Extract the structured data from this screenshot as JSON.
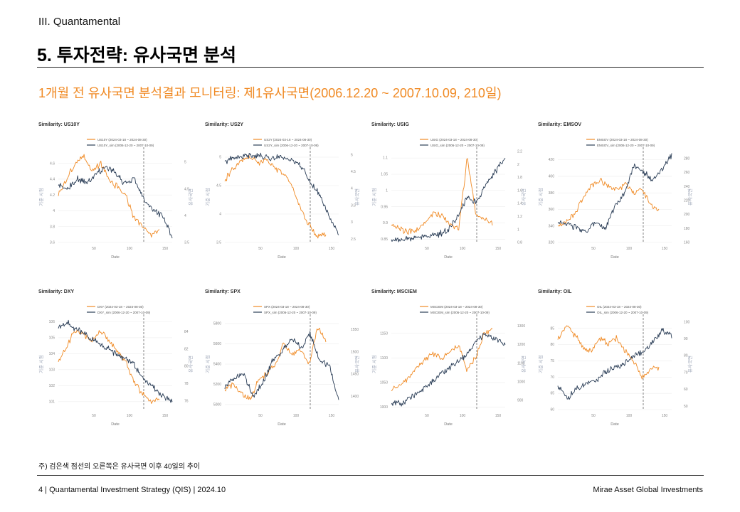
{
  "header": {
    "section": "III. Quantamental",
    "title": "5. 투자전략: 유사국면 분석",
    "subtitle": "1개월 전 유사국면 분석결과 모니터링: 제1유사국면(2006.12.20 ~ 2007.10.09, 210일)"
  },
  "colors": {
    "current": "#f08a24",
    "sim": "#2b3e57",
    "accent": "#f08a24",
    "axis_text": "#888888",
    "grid": "#eeeeee",
    "divider": "#777777"
  },
  "chart_data": [
    {
      "type": "line",
      "title": "Similarity: US10Y",
      "xlabel": "Date",
      "ylabel_left": "기준 시점",
      "ylabel_right": "유사국면",
      "xlim": [
        0,
        160
      ],
      "xticks": [
        50,
        100,
        150
      ],
      "ylim_left": [
        3.6,
        4.75
      ],
      "yticks_left": [
        3.6,
        3.8,
        4,
        4.2,
        4.4,
        4.6
      ],
      "ylim_right": [
        3.5,
        5.2
      ],
      "yticks_right": [
        3.5,
        4,
        4.5,
        5
      ],
      "divider_x": 120,
      "series": [
        {
          "name": "US10Y (2024-03-18 ~ 2024-08-30)",
          "axis": "left",
          "color": "#f08a24",
          "shape": "fall",
          "values": [
            4.2,
            4.4,
            4.6,
            4.7,
            4.5,
            4.6,
            4.4,
            4.3,
            4.2,
            3.9,
            3.8,
            3.7,
            3.75
          ]
        },
        {
          "name": "US10Y_sim (2006-12-20 ~ 2007-10-09)",
          "axis": "right",
          "color": "#2b3e57",
          "shape": "fall",
          "values": [
            4.6,
            4.5,
            4.7,
            4.6,
            4.8,
            4.9,
            4.8,
            4.6,
            4.7,
            4.3,
            4.1,
            4.0,
            3.6
          ]
        }
      ]
    },
    {
      "type": "line",
      "title": "Similarity: US2Y",
      "xlabel": "Date",
      "ylabel_left": "기준 시점",
      "ylabel_right": "유사국면",
      "xlim": [
        0,
        160
      ],
      "xticks": [
        50,
        100,
        150
      ],
      "ylim_left": [
        3.5,
        5.1
      ],
      "yticks_left": [
        3.5,
        4,
        4.5,
        5
      ],
      "ylim_right": [
        2.4,
        5.1
      ],
      "yticks_right": [
        2.5,
        3,
        3.5,
        4,
        4.5,
        5
      ],
      "divider_x": 120,
      "series": [
        {
          "name": "US2Y (2024-03-18 ~ 2024-08-30)",
          "axis": "left",
          "color": "#f08a24",
          "shape": "fall",
          "values": [
            4.6,
            4.8,
            4.95,
            5.0,
            4.9,
            4.95,
            4.8,
            4.7,
            4.5,
            4.1,
            3.8,
            3.6,
            3.65
          ]
        },
        {
          "name": "US2Y_sim (2006-12-20 ~ 2007-10-09)",
          "axis": "right",
          "color": "#2b3e57",
          "shape": "fall",
          "values": [
            4.8,
            4.9,
            4.95,
            5.0,
            4.95,
            4.9,
            4.95,
            4.85,
            4.7,
            4.2,
            3.8,
            3.2,
            2.6
          ]
        }
      ]
    },
    {
      "type": "line",
      "title": "Similarity: USIG",
      "xlabel": "Date",
      "ylabel_left": "기준 시점",
      "ylabel_right": "유사국면",
      "xlim": [
        0,
        160
      ],
      "xticks": [
        50,
        100,
        150
      ],
      "ylim_left": [
        0.84,
        1.12
      ],
      "yticks_left": [
        0.85,
        0.9,
        0.95,
        1,
        1.05,
        1.1
      ],
      "ylim_right": [
        0.8,
        2.2
      ],
      "yticks_right": [
        0.8,
        1,
        1.2,
        1.4,
        1.6,
        1.8,
        2,
        2.2
      ],
      "divider_x": 120,
      "series": [
        {
          "name": "USIG (2024-03-18 ~ 2024-08-30)",
          "axis": "left",
          "color": "#f08a24",
          "shape": "spike",
          "values": [
            0.9,
            0.88,
            0.87,
            0.88,
            0.9,
            0.93,
            0.92,
            0.9,
            0.88,
            1.1,
            0.93,
            0.91,
            0.9
          ]
        },
        {
          "name": "USIG_sim (2006-12-20 ~ 2007-10-09)",
          "axis": "right",
          "color": "#2b3e57",
          "shape": "rise",
          "values": [
            0.85,
            0.84,
            0.86,
            0.88,
            0.9,
            0.92,
            1.0,
            1.2,
            1.5,
            1.4,
            1.7,
            1.9,
            2.1
          ]
        }
      ]
    },
    {
      "type": "line",
      "title": "Similarity: EMSOV",
      "xlabel": "Date",
      "ylabel_left": "기준 시점",
      "ylabel_right": "유사국면",
      "xlim": [
        0,
        160
      ],
      "xticks": [
        50,
        100,
        150
      ],
      "ylim_left": [
        320,
        430
      ],
      "yticks_left": [
        320,
        340,
        360,
        380,
        400,
        420
      ],
      "ylim_right": [
        160,
        290
      ],
      "yticks_right": [
        160,
        180,
        200,
        220,
        240,
        260,
        280
      ],
      "divider_x": 120,
      "series": [
        {
          "name": "EMSOV (2024-03-18 ~ 2024-08-30)",
          "axis": "left",
          "color": "#f08a24",
          "shape": "rise",
          "values": [
            340,
            345,
            355,
            375,
            390,
            395,
            388,
            385,
            390,
            380,
            385,
            365,
            360
          ]
        },
        {
          "name": "EMSOV_sim (2006-12-20 ~ 2007-10-09)",
          "axis": "right",
          "color": "#2b3e57",
          "shape": "rise",
          "values": [
            190,
            185,
            180,
            175,
            190,
            180,
            210,
            230,
            270,
            260,
            250,
            265,
            285
          ]
        }
      ]
    },
    {
      "type": "line",
      "title": "Similarity: DXY",
      "xlabel": "Date",
      "ylabel_left": "기준 시점",
      "ylabel_right": "유사국면",
      "xlim": [
        0,
        160
      ],
      "xticks": [
        50,
        100,
        150
      ],
      "ylim_left": [
        100.5,
        106.2
      ],
      "yticks_left": [
        101,
        102,
        103,
        104,
        105,
        106
      ],
      "ylim_right": [
        75,
        85.5
      ],
      "yticks_right": [
        76,
        78,
        80,
        82,
        84
      ],
      "divider_x": 120,
      "series": [
        {
          "name": "DXY (2024-03-18 ~ 2024-08-30)",
          "axis": "left",
          "color": "#f08a24",
          "shape": "fall",
          "values": [
            103.5,
            104.5,
            105.5,
            105.2,
            104.8,
            105.5,
            104.8,
            104.2,
            103.5,
            102.2,
            101.5,
            101.0,
            101.2
          ]
        },
        {
          "name": "DXY_sim (2006-12-20 ~ 2007-10-09)",
          "axis": "right",
          "color": "#2b3e57",
          "shape": "fall",
          "values": [
            84.5,
            85.0,
            84.2,
            83.5,
            82.8,
            82.2,
            81.5,
            80.8,
            80.2,
            78.5,
            77.5,
            76.5,
            76.0
          ]
        }
      ]
    },
    {
      "type": "line",
      "title": "Similarity: SPX",
      "xlabel": "Date",
      "ylabel_left": "기준 시점",
      "ylabel_right": "유사국면",
      "xlim": [
        0,
        160
      ],
      "xticks": [
        50,
        100,
        150
      ],
      "ylim_left": [
        4950,
        5850
      ],
      "yticks_left": [
        5000,
        5200,
        5400,
        5600,
        5800
      ],
      "ylim_right": [
        1370,
        1575
      ],
      "yticks_right": [
        1400,
        1450,
        1500,
        1550
      ],
      "divider_x": 120,
      "series": [
        {
          "name": "SPX (2024-03-18 ~ 2024-08-30)",
          "axis": "left",
          "color": "#f08a24",
          "shape": "rise",
          "values": [
            5150,
            5200,
            5100,
            5050,
            5250,
            5300,
            5400,
            5600,
            5500,
            5550,
            5400,
            5750,
            5650
          ]
        },
        {
          "name": "SPX_sim (2006-12-20 ~ 2007-10-09)",
          "axis": "right",
          "color": "#2b3e57",
          "shape": "rise",
          "values": [
            1420,
            1440,
            1450,
            1400,
            1430,
            1480,
            1500,
            1530,
            1510,
            1540,
            1480,
            1470,
            1390
          ]
        }
      ]
    },
    {
      "type": "line",
      "title": "Similarity: MSCIEM",
      "xlabel": "Date",
      "ylabel_left": "기준 시점",
      "ylabel_right": "유사국면",
      "xlim": [
        0,
        160
      ],
      "xticks": [
        50,
        100,
        150
      ],
      "ylim_left": [
        995,
        1180
      ],
      "yticks_left": [
        1000,
        1050,
        1100,
        1150
      ],
      "ylim_right": [
        850,
        1340
      ],
      "yticks_right": [
        900,
        1000,
        1100,
        1200,
        1300
      ],
      "divider_x": 120,
      "series": [
        {
          "name": "MSCIEM (2024-03-18 ~ 2024-08-30)",
          "axis": "left",
          "color": "#f08a24",
          "shape": "rise",
          "values": [
            1035,
            1045,
            1060,
            1080,
            1095,
            1110,
            1100,
            1115,
            1125,
            1075,
            1100,
            1150,
            1160
          ]
        },
        {
          "name": "MSCIEM_sim (2006-12-20 ~ 2007-10-09)",
          "axis": "right",
          "color": "#2b3e57",
          "shape": "rise",
          "values": [
            890,
            880,
            910,
            950,
            990,
            1030,
            1070,
            1110,
            1150,
            1220,
            1260,
            1230,
            1200
          ]
        }
      ]
    },
    {
      "type": "line",
      "title": "Similarity: OIL",
      "xlabel": "Date",
      "ylabel_left": "기준 시점",
      "ylabel_right": "유사국면",
      "xlim": [
        0,
        160
      ],
      "xticks": [
        50,
        100,
        150
      ],
      "ylim_left": [
        60,
        88
      ],
      "yticks_left": [
        60,
        65,
        70,
        75,
        80,
        85
      ],
      "ylim_right": [
        48,
        102
      ],
      "yticks_right": [
        50,
        60,
        70,
        80,
        90,
        100
      ],
      "divider_x": 120,
      "series": [
        {
          "name": "OIL (2024-03-18 ~ 2024-08-30)",
          "axis": "left",
          "color": "#f08a24",
          "shape": "fall",
          "values": [
            82,
            86,
            83,
            79,
            78,
            82,
            80,
            82,
            78,
            75,
            70,
            72,
            73
          ]
        },
        {
          "name": "OIL_sim (2006-12-20 ~ 2007-10-09)",
          "axis": "right",
          "color": "#2b3e57",
          "shape": "rise",
          "values": [
            62,
            55,
            60,
            63,
            65,
            70,
            73,
            75,
            80,
            82,
            88,
            95,
            92
          ]
        }
      ]
    }
  ],
  "footnote": "주) 검은색 점선의 오른쪽은 유사국면 이후 40일의 추이",
  "footer": {
    "left": "4 | Quantamental Investment Strategy (QIS) | 2024.10",
    "right": "Mirae Asset Global Investments"
  }
}
